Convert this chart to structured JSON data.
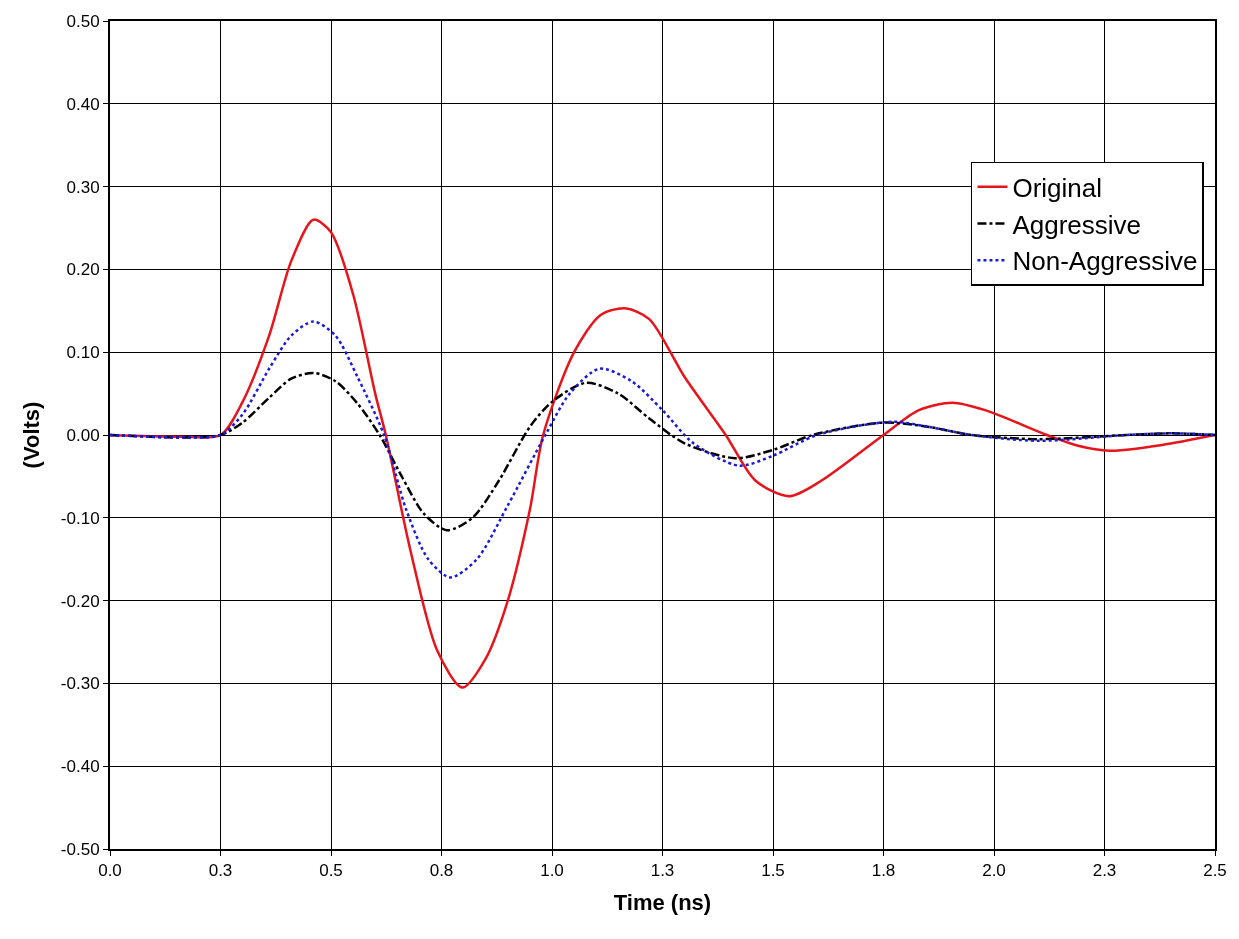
{
  "chart_data": {
    "type": "line",
    "xlabel": "Time (ns)",
    "ylabel": "(Volts)",
    "xlim": [
      0,
      2.5
    ],
    "ylim": [
      -0.5,
      0.5
    ],
    "xticks": [
      {
        "value": 0,
        "label": "0.0"
      },
      {
        "value": 0.25,
        "label": "0.3"
      },
      {
        "value": 0.5,
        "label": "0.5"
      },
      {
        "value": 0.75,
        "label": "0.8"
      },
      {
        "value": 1,
        "label": "1.0"
      },
      {
        "value": 1.25,
        "label": "1.3"
      },
      {
        "value": 1.5,
        "label": "1.5"
      },
      {
        "value": 1.75,
        "label": "1.8"
      },
      {
        "value": 2,
        "label": "2.0"
      },
      {
        "value": 2.25,
        "label": "2.3"
      },
      {
        "value": 2.5,
        "label": "2.5"
      }
    ],
    "yticks": [
      {
        "value": -0.5,
        "label": "-0.50"
      },
      {
        "value": -0.4,
        "label": "-0.40"
      },
      {
        "value": -0.3,
        "label": "-0.30"
      },
      {
        "value": -0.2,
        "label": "-0.20"
      },
      {
        "value": -0.1,
        "label": "-0.10"
      },
      {
        "value": 0,
        "label": "0.00"
      },
      {
        "value": 0.1,
        "label": "0.10"
      },
      {
        "value": 0.2,
        "label": "0.20"
      },
      {
        "value": 0.3,
        "label": "0.30"
      },
      {
        "value": 0.4,
        "label": "0.40"
      },
      {
        "value": 0.5,
        "label": "0.50"
      }
    ],
    "grid": true,
    "legend": "top right",
    "series": [
      {
        "name": "Original",
        "color": "#e8141b",
        "line_style": "solid",
        "x": [
          0,
          0.16,
          0.25,
          0.3,
          0.36,
          0.41,
          0.46,
          0.5,
          0.55,
          0.6,
          0.624,
          0.68,
          0.74,
          0.797,
          0.85,
          0.9,
          0.95,
          0.98,
          1.05,
          1.11,
          1.165,
          1.22,
          1.3,
          1.393,
          1.46,
          1.536,
          1.61,
          1.75,
          1.83,
          1.906,
          1.98,
          2.12,
          2.19,
          2.262,
          2.38,
          2.5
        ],
        "values": [
          0,
          -0.002,
          0,
          0.04,
          0.12,
          0.21,
          0.26,
          0.245,
          0.17,
          0.05,
          0,
          -0.14,
          -0.26,
          -0.305,
          -0.27,
          -0.2,
          -0.09,
          0,
          0.1,
          0.145,
          0.153,
          0.14,
          0.07,
          0,
          -0.055,
          -0.074,
          -0.055,
          0,
          0.03,
          0.039,
          0.03,
          0,
          -0.013,
          -0.019,
          -0.012,
          0
        ]
      },
      {
        "name": "Aggressive",
        "color": "#000000",
        "line_style": "dashed",
        "x": [
          0,
          0.165,
          0.25,
          0.3,
          0.36,
          0.41,
          0.46,
          0.51,
          0.56,
          0.61,
          0.66,
          0.71,
          0.762,
          0.82,
          0.88,
          0.95,
          1.0,
          1.077,
          1.15,
          1.22,
          1.3,
          1.414,
          1.5,
          1.59,
          1.75,
          1.85,
          1.95,
          2.1,
          2.3,
          2.4,
          2.5
        ],
        "values": [
          0,
          -0.003,
          0,
          0.015,
          0.045,
          0.068,
          0.075,
          0.065,
          0.038,
          0,
          -0.05,
          -0.095,
          -0.115,
          -0.1,
          -0.055,
          0.01,
          0.04,
          0.063,
          0.05,
          0.02,
          -0.01,
          -0.028,
          -0.018,
          0,
          0.015,
          0.01,
          0,
          -0.005,
          0,
          0.002,
          0
        ]
      },
      {
        "name": "Non-Aggressive",
        "color": "#1a1adc",
        "line_style": "dotted",
        "x": [
          0,
          0.165,
          0.25,
          0.3,
          0.36,
          0.41,
          0.46,
          0.51,
          0.56,
          0.62,
          0.67,
          0.72,
          0.77,
          0.83,
          0.9,
          0.985,
          1.04,
          1.107,
          1.18,
          1.25,
          1.32,
          1.423,
          1.5,
          1.6,
          1.77,
          1.85,
          1.95,
          2.1,
          2.3,
          2.4,
          2.5
        ],
        "values": [
          0,
          -0.003,
          0,
          0.025,
          0.08,
          0.12,
          0.137,
          0.12,
          0.07,
          0,
          -0.09,
          -0.15,
          -0.172,
          -0.15,
          -0.085,
          0,
          0.05,
          0.08,
          0.065,
          0.03,
          -0.01,
          -0.037,
          -0.025,
          0,
          0.016,
          0.01,
          0,
          -0.007,
          0,
          0.002,
          0
        ]
      }
    ]
  }
}
